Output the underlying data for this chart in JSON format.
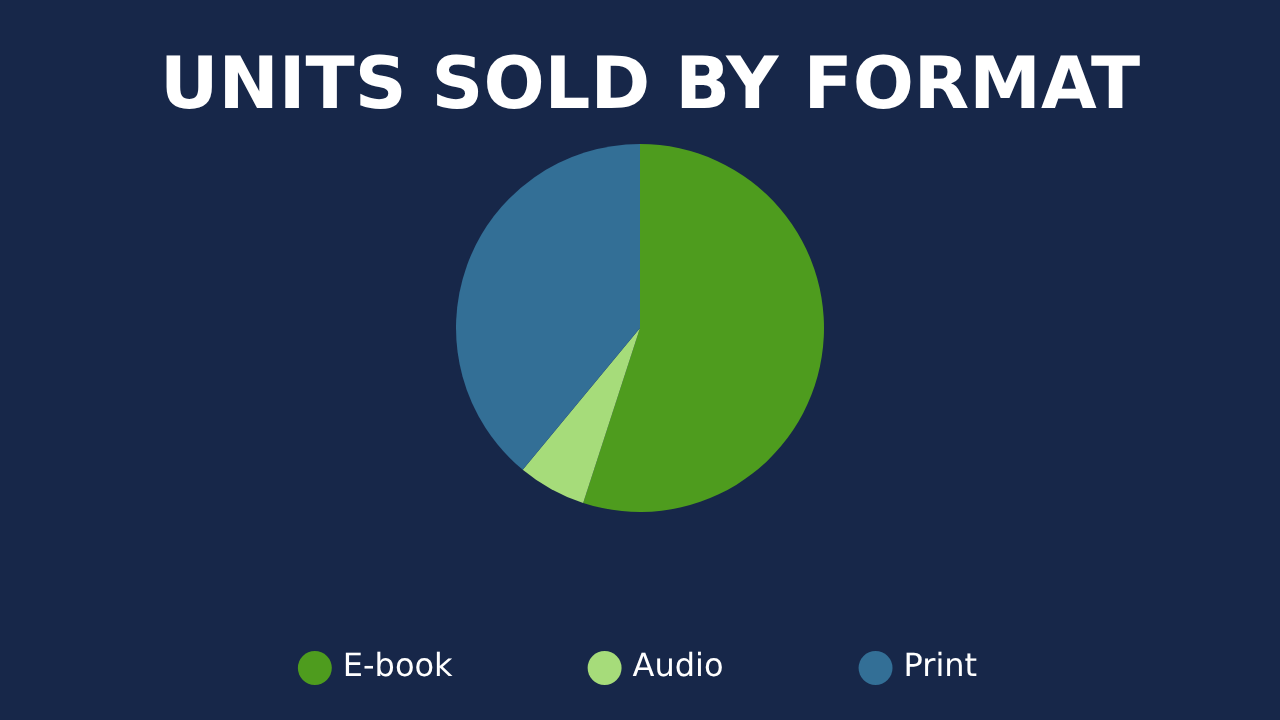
{
  "chart_data": {
    "type": "pie",
    "title": "UNITS SOLD BY FORMAT",
    "categories": [
      "E-book",
      "Audio",
      "Print"
    ],
    "values": [
      55,
      6,
      39
    ],
    "colors": [
      "#4e9c1e",
      "#a6dc7a",
      "#336f96"
    ],
    "legend": "bottom"
  }
}
